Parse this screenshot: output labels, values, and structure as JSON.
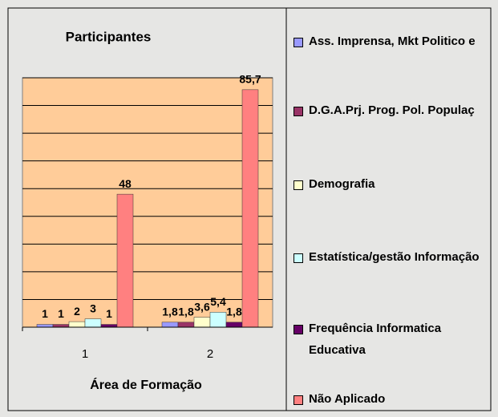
{
  "chart_data": {
    "type": "bar",
    "title": "Participantes",
    "x_label": "Área de Formação",
    "categories": [
      "1",
      "2"
    ],
    "series": [
      {
        "name": "Ass. Imprensa, Mkt Politico e",
        "color": "#9999ff",
        "values": [
          1,
          1.8
        ],
        "value_labels": [
          "1",
          "1,8"
        ]
      },
      {
        "name": "D.G.A.Prj. Prog. Pol. Populaç",
        "color": "#993366",
        "values": [
          1,
          1.8
        ],
        "value_labels": [
          "1",
          "1,8"
        ]
      },
      {
        "name": "Demografia",
        "color": "#ffffcc",
        "values": [
          2,
          3.6
        ],
        "value_labels": [
          "2",
          "3,6"
        ]
      },
      {
        "name": "Estatística/gestão Informação",
        "color": "#ccffff",
        "values": [
          3,
          5.4
        ],
        "value_labels": [
          "3",
          "5,4"
        ]
      },
      {
        "name": "Frequência Informatica Educativa",
        "color": "#660066",
        "values": [
          1,
          1.8
        ],
        "value_labels": [
          "1",
          "1,8"
        ]
      },
      {
        "name": "Não Aplicado",
        "color": "#ff8080",
        "values": [
          48,
          85.7
        ],
        "value_labels": [
          "48",
          "85,7"
        ]
      }
    ],
    "ylim": [
      0,
      90
    ],
    "yticks": [
      0,
      10,
      20,
      30,
      40,
      50,
      60,
      70,
      80,
      90
    ],
    "grid": true,
    "plot_background": "#ffcc99",
    "legend": "right"
  }
}
